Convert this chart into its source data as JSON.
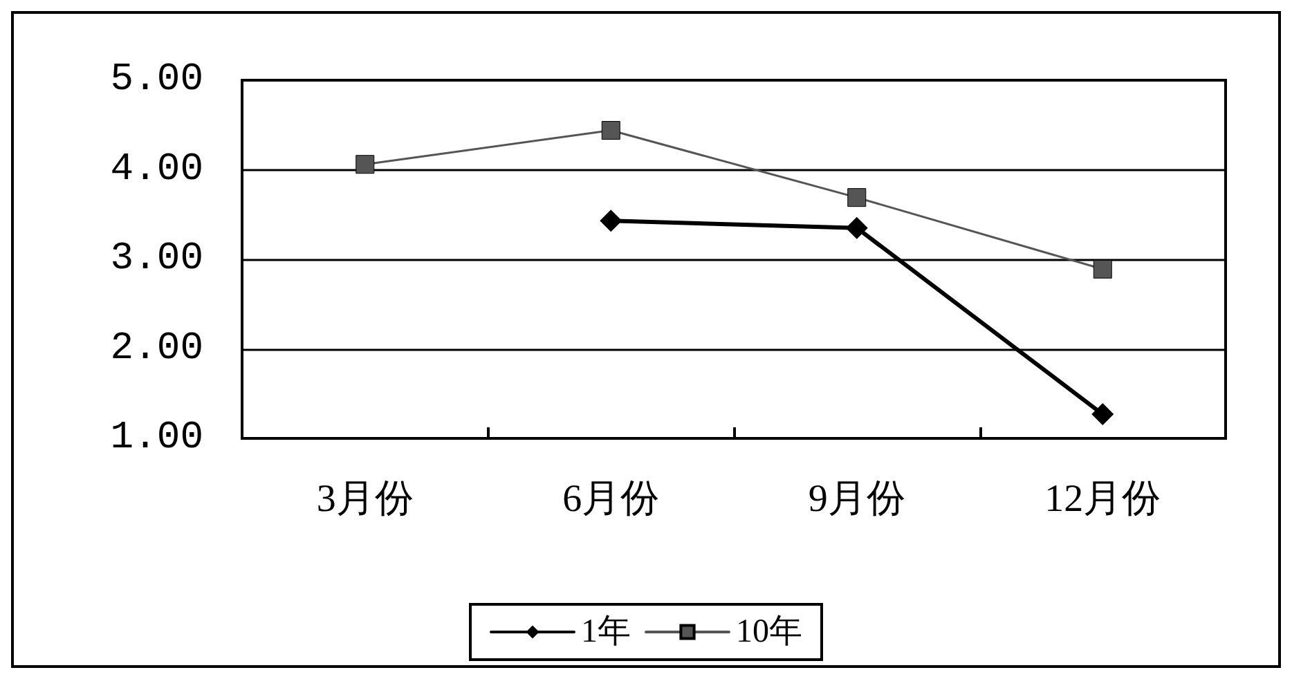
{
  "chart_data": {
    "type": "line",
    "categories": [
      "3月份",
      "6月份",
      "9月份",
      "12月份"
    ],
    "series": [
      {
        "name": "1年",
        "color": "#000000",
        "marker": "diamond",
        "values": [
          null,
          3.43,
          3.35,
          1.27
        ]
      },
      {
        "name": "10年",
        "color": "#555555",
        "marker": "square",
        "values": [
          4.06,
          4.44,
          3.69,
          2.89
        ]
      }
    ],
    "ylim": [
      1,
      5
    ],
    "yticks": [
      {
        "value": 1,
        "label": "1.00"
      },
      {
        "value": 2,
        "label": "2.00"
      },
      {
        "value": 3,
        "label": "3.00"
      },
      {
        "value": 4,
        "label": "4.00"
      },
      {
        "value": 5,
        "label": "5.00"
      }
    ],
    "grid": "y",
    "legend": "bottom"
  }
}
